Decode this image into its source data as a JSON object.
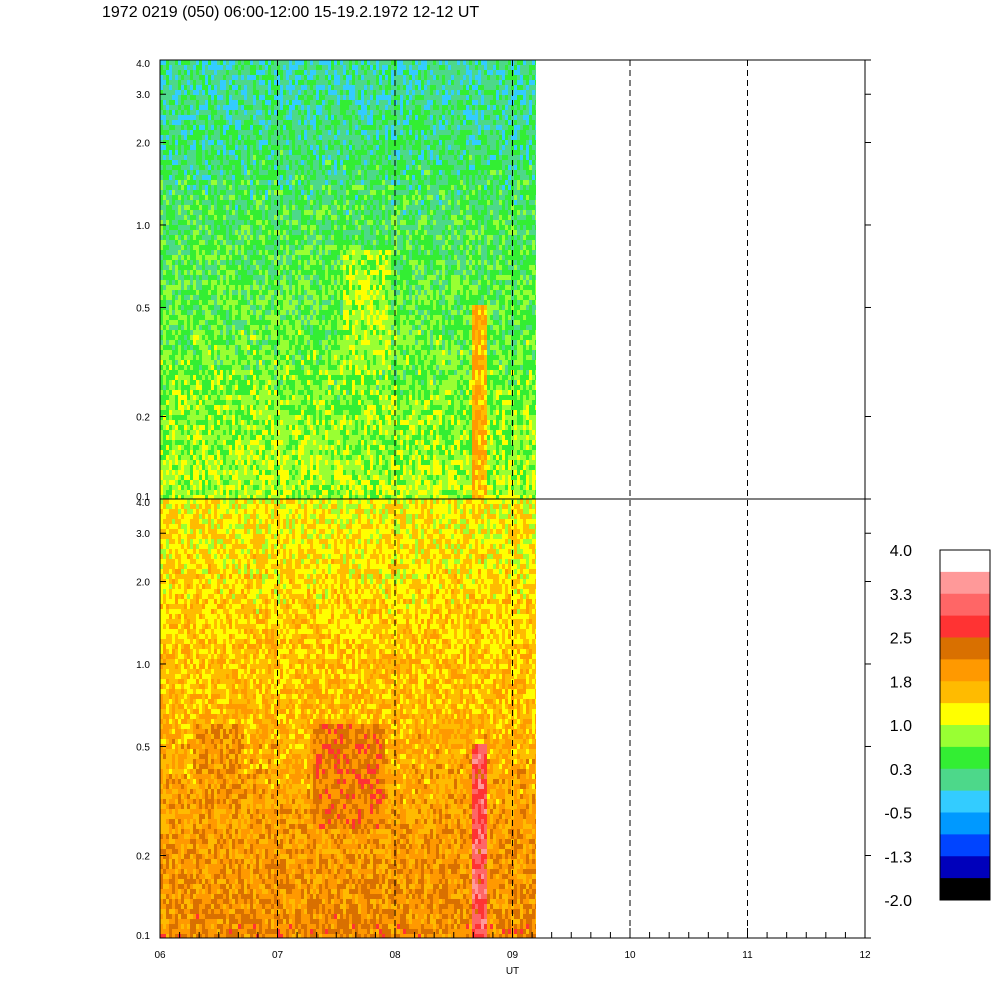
{
  "title": "1972 0219 (050) 06:00-12:00 15-19.2.1972  12-12 UT",
  "chart_data": {
    "type": "heatmap",
    "x_label": "UT",
    "x_ticks": [
      "06",
      "07",
      "08",
      "09",
      "10",
      "11",
      "12"
    ],
    "x_range": [
      6,
      12
    ],
    "data_end_ut": 9.2,
    "y_scale": "log",
    "y_range": [
      0.1,
      4.0
    ],
    "y_ticks": [
      {
        "value": 4.0,
        "label": "4.0"
      },
      {
        "value": 3.0,
        "label": "3.0"
      },
      {
        "value": 2.0,
        "label": "2.0"
      },
      {
        "value": 1.0,
        "label": "1.0"
      },
      {
        "value": 0.5,
        "label": "0.5"
      },
      {
        "value": 0.2,
        "label": "0.2"
      },
      {
        "value": 0.1,
        "label": "0.1"
      }
    ],
    "panels": [
      {
        "name": "top",
        "typical_level": 0.4,
        "enhancements": [
          {
            "ut": [
              8.65,
              8.78
            ],
            "freq": [
              0.1,
              0.5
            ],
            "level": 1.6
          },
          {
            "ut": [
              7.55,
              7.95
            ],
            "freq": [
              0.3,
              0.8
            ],
            "level": 0.9
          }
        ]
      },
      {
        "name": "bottom",
        "typical_level": 1.7,
        "enhancements": [
          {
            "ut": [
              8.65,
              8.78
            ],
            "freq": [
              0.1,
              0.5
            ],
            "level": 2.9
          },
          {
            "ut": [
              7.3,
              7.9
            ],
            "freq": [
              0.25,
              0.6
            ],
            "level": 2.2
          },
          {
            "ut": [
              6.3,
              6.7
            ],
            "freq": [
              0.3,
              0.6
            ],
            "level": 2.0
          }
        ]
      }
    ],
    "colorbar": {
      "labels": [
        "4.0",
        "3.3",
        "2.5",
        "1.8",
        "1.0",
        "0.3",
        "-0.5",
        "-1.3",
        "-2.0"
      ],
      "colors": [
        "#ffffff",
        "#ff9999",
        "#ff6666",
        "#ff3333",
        "#d97000",
        "#ff9900",
        "#ffbb00",
        "#ffff00",
        "#99ff33",
        "#33ee33",
        "#4dd88a",
        "#33ccff",
        "#0099ff",
        "#0044ff",
        "#0000bb",
        "#000000"
      ]
    }
  }
}
